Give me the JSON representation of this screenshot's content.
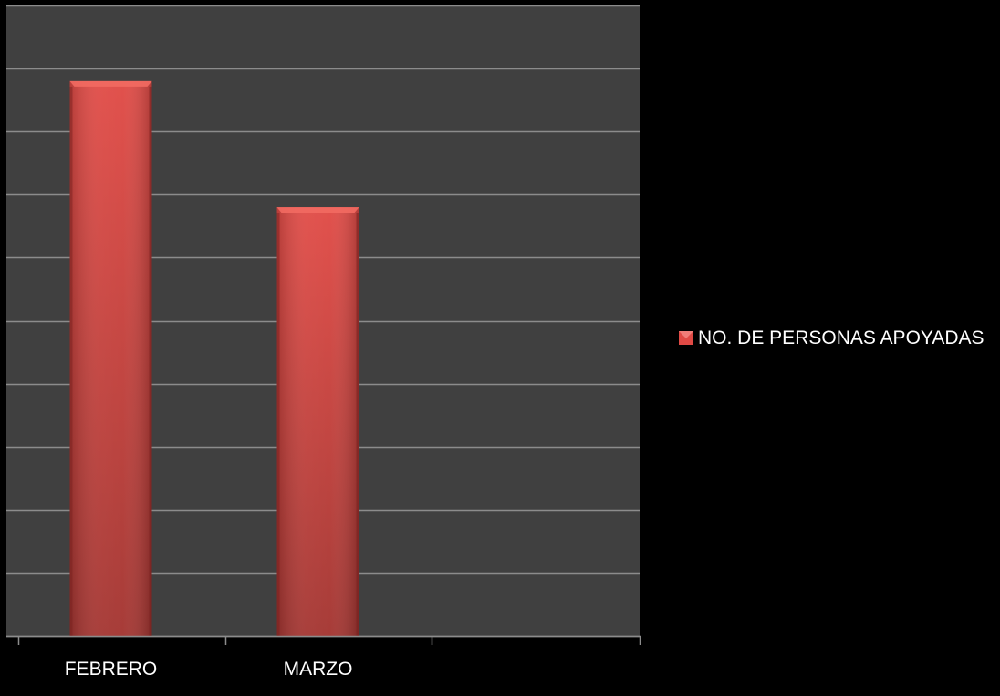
{
  "chart_data": {
    "type": "bar",
    "categories": [
      "FEBRERO",
      "MARZO",
      ""
    ],
    "series": [
      {
        "name": "NO. DE PERSONAS APOYADAS",
        "values": [
          8.8,
          6.8,
          null
        ]
      }
    ],
    "ylim": [
      0,
      10
    ],
    "y_gridlines": 10,
    "grid": true,
    "legend": "right",
    "y_tick_labels_visible": false,
    "colors": {
      "background": "#000000",
      "plot_area": "#404040",
      "gridline": "#8c8c8c",
      "bar_top": "#e04a45",
      "bar_bottom": "#a33430",
      "axis_text": "#ffffff"
    }
  }
}
